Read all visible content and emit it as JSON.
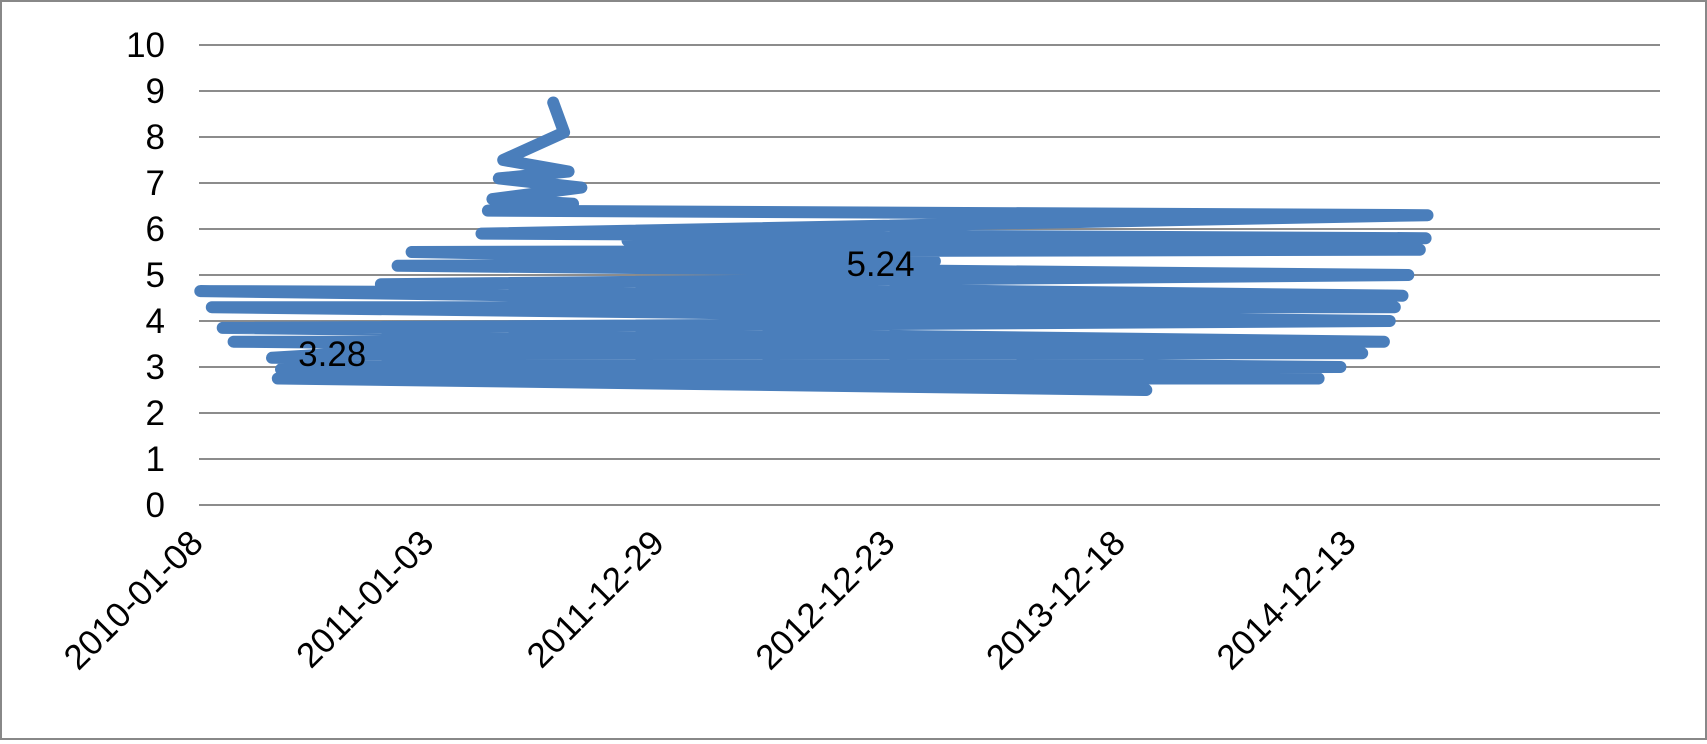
{
  "chart_data": {
    "type": "line",
    "x": [
      "2011-07-15",
      "2011-08-01",
      "2011-04-28",
      "2011-08-08",
      "2011-04-21",
      "2011-08-28",
      "2011-04-11",
      "2011-08-15",
      "2011-04-04",
      "2015-04-10",
      "2011-03-25",
      "2015-04-07",
      "2011-11-08",
      "2015-03-29",
      "2010-12-06",
      "2013-03-02",
      "2012-12-07",
      "2010-11-14",
      "2015-03-11",
      "2010-10-19",
      "2015-03-02",
      "2010-01-10",
      "2015-02-18",
      "2010-01-28",
      "2015-02-10",
      "2010-02-14",
      "2015-02-01",
      "2010-03-03",
      "2014-12-29",
      "2010-08-04",
      "2010-05-02",
      "2014-11-25",
      "2010-05-16",
      "2014-10-22",
      "2010-05-11",
      "2014-01-26"
    ],
    "series": [
      {
        "color": "#4a7ebb",
        "values": [
          8.75,
          8.1,
          7.5,
          7.25,
          7.1,
          6.9,
          6.65,
          6.55,
          6.4,
          6.3,
          5.9,
          5.8,
          5.75,
          5.55,
          5.5,
          5.3,
          5.24,
          5.2,
          5.0,
          4.8,
          4.55,
          4.65,
          4.3,
          4.3,
          4.0,
          3.85,
          3.55,
          3.55,
          3.3,
          3.28,
          3.2,
          3.0,
          2.95,
          2.75,
          2.75,
          2.5
        ],
        "value_labels": [
          null,
          null,
          null,
          null,
          null,
          null,
          null,
          null,
          null,
          null,
          null,
          null,
          null,
          null,
          null,
          null,
          "5.24",
          null,
          null,
          null,
          null,
          null,
          null,
          null,
          null,
          null,
          null,
          null,
          null,
          "3.28",
          null,
          null,
          null,
          null,
          null,
          null
        ]
      }
    ],
    "xlim": [
      "2010-01-08",
      "2016-04-07"
    ],
    "xticks": [
      "2010-01-08",
      "2011-01-03",
      "2011-12-29",
      "2012-12-23",
      "2013-12-18",
      "2014-12-13"
    ],
    "ylim": [
      0,
      10
    ],
    "yticks": [
      0,
      1,
      2,
      3,
      4,
      5,
      6,
      7,
      8,
      9,
      10
    ],
    "grid": true
  }
}
